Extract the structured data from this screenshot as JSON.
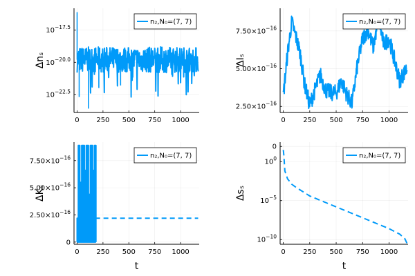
{
  "chart_data": [
    {
      "type": "line",
      "panel": "top-left",
      "xlabel": "",
      "ylabel": "Δnₛ",
      "yscale": "log",
      "xlim": [
        -30,
        1180
      ],
      "xticks": [
        "0",
        "250",
        "500",
        "750",
        "1000"
      ],
      "ylim_log10": [
        -23.9,
        -15.8
      ],
      "yticks": [
        {
          "base": "10",
          "exp": "−17.5"
        },
        {
          "base": "10",
          "exp": "−20.0"
        },
        {
          "base": "10",
          "exp": "−22.5"
        }
      ],
      "legend": {
        "label": "n₂,N₀=(7, 7)",
        "position": "top-right"
      },
      "series": [
        {
          "name": "n₂,N₀=(7, 7)",
          "style": "noisy",
          "x_range": [
            0,
            1170
          ],
          "log10_center": -19.8,
          "log10_spread": 1.0,
          "spikes": [
            [
              0,
              -16.1
            ],
            [
              110,
              -23.6
            ],
            [
              20,
              -22.7
            ],
            [
              210,
              -22.0
            ],
            [
              420,
              -21.8
            ]
          ]
        }
      ]
    },
    {
      "type": "line",
      "panel": "top-right",
      "xlabel": "",
      "ylabel": "ΔIₛ",
      "yscale": "linear",
      "xlim": [
        -30,
        1180
      ],
      "xticks": [
        "0",
        "250",
        "500",
        "750",
        "1000"
      ],
      "ylim": [
        2.1e-16,
        9e-16
      ],
      "yticks": [
        {
          "base": "2.50×10",
          "exp": "−16"
        },
        {
          "base": "5.00×10",
          "exp": "−16"
        },
        {
          "base": "7.50×10",
          "exp": "−16"
        }
      ],
      "legend": {
        "label": "n₂,N₀=(7, 7)",
        "position": "top-right"
      },
      "series": [
        {
          "name": "n₂,N₀=(7, 7)",
          "style": "wander",
          "x": [
            0,
            40,
            80,
            120,
            160,
            200,
            250,
            300,
            350,
            400,
            450,
            500,
            550,
            600,
            650,
            700,
            750,
            800,
            850,
            900,
            950,
            1000,
            1050,
            1100,
            1140,
            1170
          ],
          "y": [
            3.2e-16,
            6e-16,
            8.1e-16,
            7.1e-16,
            6e-16,
            4e-16,
            2.6e-16,
            3.6e-16,
            4.6e-16,
            3.6e-16,
            3.4e-16,
            3.4e-16,
            4.2e-16,
            3.3e-16,
            2.7e-16,
            5.2e-16,
            7e-16,
            7.6e-16,
            6.4e-16,
            8.3e-16,
            6.6e-16,
            7e-16,
            5.6e-16,
            4.2e-16,
            4.7e-16,
            5e-16
          ],
          "noise": 5.5e-17
        }
      ]
    },
    {
      "type": "line",
      "panel": "bottom-left",
      "xlabel": "t",
      "ylabel": "ΔKₛ",
      "yscale": "linear",
      "xlim": [
        -30,
        1180
      ],
      "xticks": [
        "0",
        "250",
        "500",
        "750",
        "1000"
      ],
      "ylim": [
        -2e-17,
        9.2e-16
      ],
      "yticks": [
        {
          "base": "0",
          "exp": ""
        },
        {
          "base": "2.50×10",
          "exp": "−16"
        },
        {
          "base": "5.00×10",
          "exp": "−16"
        },
        {
          "base": "7.50×10",
          "exp": "−16"
        }
      ],
      "legend": {
        "label": "n₂,N₀=(7, 7)",
        "position": "top-right"
      },
      "series": [
        {
          "name": "n₂,N₀=(7, 7)",
          "style": "pulses_then_dashed",
          "pulse_x_range": [
            0,
            175
          ],
          "pulse_levels": [
            0,
            2.2e-16,
            4.4e-16,
            5.5e-16,
            6.6e-16,
            8.9e-16
          ],
          "constant_value": 2.2e-16,
          "constant_x_range": [
            175,
            1170
          ]
        }
      ]
    },
    {
      "type": "line",
      "panel": "bottom-right",
      "xlabel": "t",
      "ylabel": "Δsₛ",
      "yscale": "log",
      "xlim": [
        -30,
        1180
      ],
      "xticks": [
        "0",
        "250",
        "500",
        "750",
        "1000"
      ],
      "ylim_log10": [
        -10.6,
        2.5
      ],
      "yticks": [
        {
          "base": "0",
          "exp": ""
        },
        {
          "base": "10",
          "exp": "0"
        },
        {
          "base": "10",
          "exp": "−5"
        },
        {
          "base": "10",
          "exp": "−10"
        }
      ],
      "legend": {
        "label": "n₂,N₀=(7, 7)",
        "position": "top-right"
      },
      "series": [
        {
          "name": "n₂,N₀=(7, 7)",
          "style": "dashed",
          "x": [
            0,
            5,
            15,
            40,
            80,
            120,
            250,
            500,
            750,
            1000,
            1100,
            1150,
            1170
          ],
          "log10_y": [
            1.5,
            0.8,
            -1.2,
            -2.2,
            -2.9,
            -3.3,
            -4.4,
            -5.8,
            -7.2,
            -8.6,
            -9.3,
            -9.9,
            -10.5
          ]
        }
      ]
    }
  ]
}
